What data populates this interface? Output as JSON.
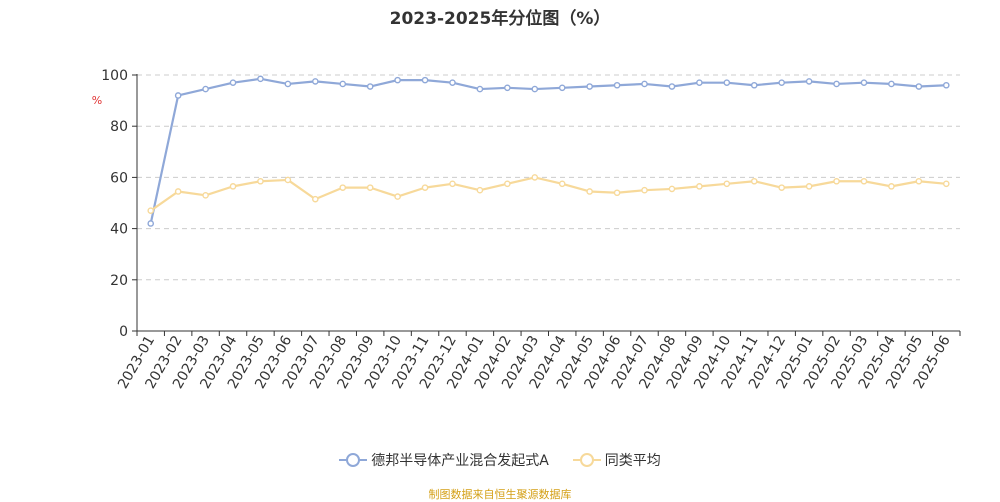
{
  "chart_data": {
    "type": "line",
    "title": "2023-2025年分位图（%）",
    "ylabel": "%",
    "xlabel": "",
    "ylim": [
      0,
      100
    ],
    "yticks": [
      0,
      20,
      40,
      60,
      80,
      100
    ],
    "grid": true,
    "legend_position": "bottom",
    "categories": [
      "2023-01",
      "2023-02",
      "2023-03",
      "2023-04",
      "2023-05",
      "2023-06",
      "2023-07",
      "2023-08",
      "2023-09",
      "2023-10",
      "2023-11",
      "2023-12",
      "2024-01",
      "2024-02",
      "2024-03",
      "2024-04",
      "2024-05",
      "2024-06",
      "2024-07",
      "2024-08",
      "2024-09",
      "2024-10",
      "2024-11",
      "2024-12",
      "2025-01",
      "2025-02",
      "2025-03",
      "2025-04",
      "2025-05",
      "2025-06"
    ],
    "series": [
      {
        "name": "德邦半导体产业混合发起式A",
        "color": "#8fa8d8",
        "values": [
          42,
          92,
          94.5,
          97,
          98.5,
          96.5,
          97.5,
          96.5,
          95.5,
          98,
          98,
          97,
          94.5,
          95,
          94.5,
          95,
          95.5,
          96,
          96.5,
          95.5,
          97,
          97,
          96,
          97,
          97.5,
          96.5,
          97,
          96.5,
          95.5,
          96
        ]
      },
      {
        "name": "同类平均",
        "color": "#f7d99a",
        "values": [
          47,
          54.5,
          53,
          56.5,
          58.5,
          59,
          51.5,
          56,
          56,
          52.5,
          56,
          57.5,
          55,
          57.5,
          60,
          57.5,
          54.5,
          54,
          55,
          55.5,
          56.5,
          57.5,
          58.5,
          56,
          56.5,
          58.5,
          58.5,
          56.5,
          58.5,
          57.5
        ]
      }
    ]
  },
  "footer": {
    "source": "制图数据来自恒生聚源数据库"
  }
}
